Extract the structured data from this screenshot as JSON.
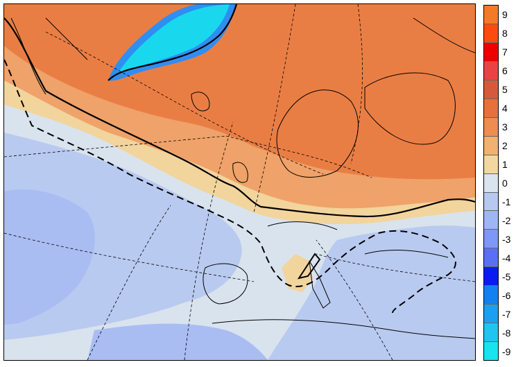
{
  "colorbar": {
    "bins": [
      {
        "label": "9",
        "color": "#f47a28"
      },
      {
        "label": "8",
        "color": "#fb4b0f"
      },
      {
        "label": "7",
        "color": "#ee0000"
      },
      {
        "label": "6",
        "color": "#ea4343"
      },
      {
        "label": "5",
        "color": "#d55a3c"
      },
      {
        "label": "4",
        "color": "#e6713d"
      },
      {
        "label": "3",
        "color": "#ef8c4f"
      },
      {
        "label": "2",
        "color": "#f1b16f"
      },
      {
        "label": "1",
        "color": "#f3d79e"
      },
      {
        "label": "0",
        "color": "#d9e4ee"
      },
      {
        "label": "-1",
        "color": "#b8c9f0"
      },
      {
        "label": "-2",
        "color": "#9fb6f4"
      },
      {
        "label": "-3",
        "color": "#7f97f5"
      },
      {
        "label": "-4",
        "color": "#5b6ff4"
      },
      {
        "label": "-5",
        "color": "#0a1bf2"
      },
      {
        "label": "-6",
        "color": "#1380f2"
      },
      {
        "label": "-7",
        "color": "#1d9ff1"
      },
      {
        "label": "-8",
        "color": "#1fc5ee"
      },
      {
        "label": "-9",
        "color": "#19e3ee"
      }
    ]
  },
  "map": {
    "fields": {
      "warm_strong": "#e97e45",
      "warm_mid": "#efa269",
      "warm_weak": "#f2d49d",
      "neutral": "#d8e3ee",
      "cool_weak": "#b9caf0",
      "cool_mid": "#a9bdf3",
      "cold_core": "#19d8ee",
      "cold_edge": "#2f8ef1"
    }
  }
}
